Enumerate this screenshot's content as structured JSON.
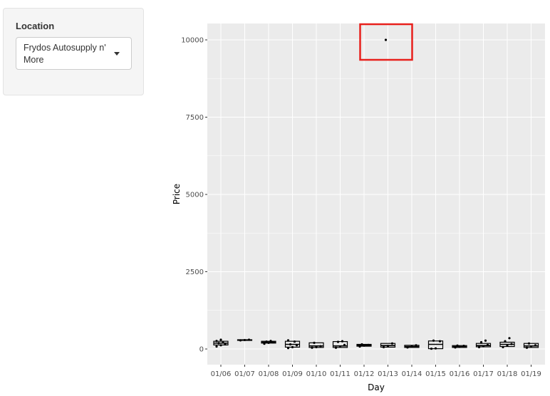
{
  "sidebar": {
    "label": "Location",
    "select": {
      "selected": "Frydos Autosupply n' More",
      "caret_icon": "chevron-down-icon"
    }
  },
  "colors": {
    "panel": "#ebebeb",
    "grid": "#ffffff",
    "marks": "#000000",
    "highlight": "#e8201c"
  },
  "chart_data": {
    "type": "box",
    "xlabel": "Day",
    "ylabel": "Price",
    "ylim": [
      -500,
      10500
    ],
    "yticks": [
      0,
      2500,
      5000,
      7500,
      10000
    ],
    "ytick_labels": [
      "0",
      "2500",
      "5000",
      "7500",
      "10000"
    ],
    "grid": true,
    "highlighted_point": {
      "category": "01/13",
      "value": 10000
    },
    "categories": [
      "01/06",
      "01/07",
      "01/08",
      "01/09",
      "01/10",
      "01/11",
      "01/12",
      "01/13",
      "01/14",
      "01/15",
      "01/16",
      "01/17",
      "01/18",
      "01/19"
    ],
    "boxes": [
      {
        "category": "01/06",
        "q1": 130,
        "median": 190,
        "q3": 250,
        "points": [
          80,
          120,
          150,
          190,
          210,
          260,
          300
        ]
      },
      {
        "category": "01/07",
        "q1": 280,
        "median": 290,
        "q3": 300,
        "points": [
          280,
          290,
          300
        ]
      },
      {
        "category": "01/08",
        "q1": 190,
        "median": 220,
        "q3": 250,
        "points": [
          170,
          200,
          220,
          240,
          260
        ]
      },
      {
        "category": "01/09",
        "q1": 60,
        "median": 150,
        "q3": 250,
        "points": [
          30,
          60,
          120,
          150,
          240,
          280
        ]
      },
      {
        "category": "01/10",
        "q1": 50,
        "median": 100,
        "q3": 200,
        "points": [
          40,
          60,
          90,
          200
        ]
      },
      {
        "category": "01/11",
        "q1": 50,
        "median": 100,
        "q3": 240,
        "points": [
          40,
          80,
          130,
          230,
          250
        ]
      },
      {
        "category": "01/12",
        "q1": 90,
        "median": 120,
        "q3": 150,
        "points": [
          80,
          110,
          130,
          150
        ]
      },
      {
        "category": "01/13",
        "q1": 60,
        "median": 110,
        "q3": 180,
        "points": [
          60,
          100,
          180,
          10000
        ]
      },
      {
        "category": "01/14",
        "q1": 50,
        "median": 80,
        "q3": 120,
        "points": [
          50,
          80,
          120
        ]
      },
      {
        "category": "01/15",
        "q1": 10,
        "median": 150,
        "q3": 260,
        "points": [
          10,
          20,
          250,
          270
        ]
      },
      {
        "category": "01/16",
        "q1": 50,
        "median": 80,
        "q3": 110,
        "points": [
          50,
          70,
          100,
          110
        ]
      },
      {
        "category": "01/17",
        "q1": 70,
        "median": 110,
        "q3": 180,
        "points": [
          60,
          90,
          130,
          220,
          270
        ]
      },
      {
        "category": "01/18",
        "q1": 80,
        "median": 150,
        "q3": 220,
        "points": [
          60,
          110,
          160,
          250,
          350
        ]
      },
      {
        "category": "01/19",
        "q1": 50,
        "median": 100,
        "q3": 180,
        "points": [
          40,
          80,
          120,
          180
        ]
      }
    ]
  }
}
